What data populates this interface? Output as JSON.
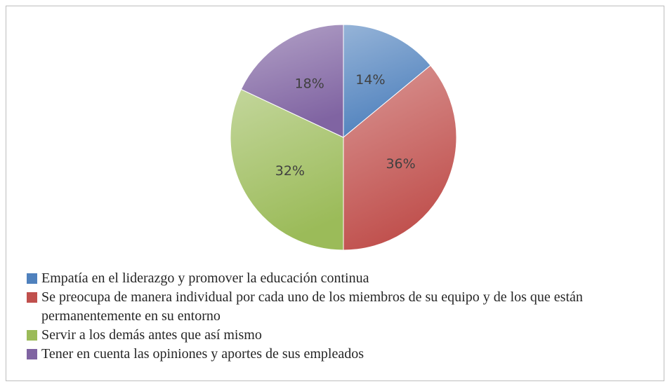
{
  "chart_data": {
    "type": "pie",
    "categories": [
      "Empatía en el liderazgo y promover la educación continua",
      "Se preocupa de manera individual por cada uno de los miembros de su equipo y de los que están permanentemente en su entorno",
      "Servir a los demás antes que así mismo",
      "Tener en cuenta las opiniones y aportes de sus empleados"
    ],
    "values": [
      14,
      36,
      32,
      18
    ],
    "value_labels": [
      "14%",
      "36%",
      "32%",
      "18%"
    ],
    "colors": [
      "#4f81bd",
      "#c0504d",
      "#9bbb59",
      "#8064a2"
    ]
  }
}
